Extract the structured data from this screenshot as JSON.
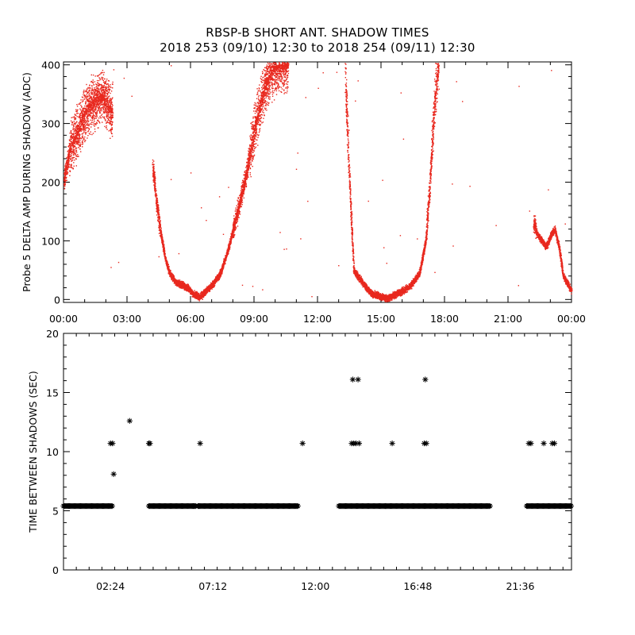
{
  "title": "RBSP-B SHORT ANT. SHADOW TIMES",
  "subtitle": "2018 253 (09/10) 12:30 to 2018 254 (09/11) 12:30",
  "chart_data": [
    {
      "type": "scatter",
      "ylabel": "Probe 5 DELTA AMP DURING SHADOW (ADC)",
      "xlabel": "",
      "xlim": [
        0,
        24
      ],
      "ylim": [
        -5,
        405
      ],
      "x_ticks": [
        "00:00",
        "03:00",
        "06:00",
        "09:00",
        "12:00",
        "15:00",
        "18:00",
        "21:00",
        "00:00"
      ],
      "y_ticks": [
        "0",
        "100",
        "200",
        "300",
        "400"
      ],
      "marker_color": "#e8281e",
      "series": [
        {
          "x": [
            0.0,
            0.3,
            0.6,
            0.9,
            1.2,
            1.5,
            1.8,
            2.1,
            2.3,
            4.2,
            4.4,
            4.6,
            4.8,
            5.0,
            5.3,
            5.6,
            5.9,
            6.1,
            6.4,
            6.7,
            7.0,
            7.4,
            7.8,
            8.2,
            8.6,
            9.0,
            9.4,
            9.8,
            10.2,
            10.6,
            13.3,
            13.5,
            13.7,
            14.0,
            14.3,
            14.6,
            15.0,
            15.3,
            15.6,
            16.0,
            16.4,
            16.8,
            17.1,
            17.3,
            17.5,
            17.7,
            22.2,
            22.4,
            22.6,
            22.8,
            23.0,
            23.2,
            23.4,
            23.6,
            24.0
          ],
          "y": [
            200,
            260,
            280,
            310,
            330,
            340,
            350,
            330,
            320,
            230,
            160,
            110,
            70,
            45,
            30,
            25,
            20,
            10,
            5,
            15,
            25,
            45,
            90,
            150,
            210,
            290,
            350,
            390,
            400,
            400,
            380,
            200,
            50,
            35,
            20,
            10,
            5,
            3,
            8,
            15,
            25,
            45,
            100,
            200,
            330,
            400,
            130,
            110,
            100,
            90,
            110,
            120,
            90,
            40,
            15
          ]
        }
      ]
    },
    {
      "type": "scatter",
      "ylabel": "TIME BETWEEN SHADOWS (SEC)",
      "xlabel": "",
      "xlim": [
        0.2,
        24.0
      ],
      "ylim": [
        0,
        20
      ],
      "x_ticks": [
        "02:24",
        "07:12",
        "12:00",
        "16:48",
        "21:36"
      ],
      "y_ticks": [
        "0",
        "5",
        "10",
        "15",
        "20"
      ],
      "marker": "asterisk",
      "series": [
        {
          "baseline_value": 5.4,
          "baseline_ranges": [
            [
              0.2,
              2.5
            ],
            [
              4.2,
              6.4
            ],
            [
              6.5,
              11.2
            ],
            [
              13.1,
              15.3
            ],
            [
              15.3,
              20.2
            ],
            [
              21.9,
              24.0
            ]
          ],
          "x": [
            2.4,
            2.5,
            2.55,
            3.3,
            4.2,
            4.25,
            6.6,
            11.4,
            13.7,
            13.75,
            13.8,
            13.9,
            14.0,
            14.05,
            15.6,
            17.1,
            17.15,
            17.2,
            22.0,
            22.1,
            22.7,
            23.1,
            23.2
          ],
          "y": [
            10.7,
            10.7,
            8.1,
            12.6,
            10.7,
            10.7,
            10.7,
            10.7,
            10.7,
            16.1,
            10.7,
            10.7,
            16.1,
            10.7,
            10.7,
            10.7,
            16.1,
            10.7,
            10.7,
            10.7,
            10.7,
            10.7,
            10.7
          ]
        }
      ]
    }
  ]
}
